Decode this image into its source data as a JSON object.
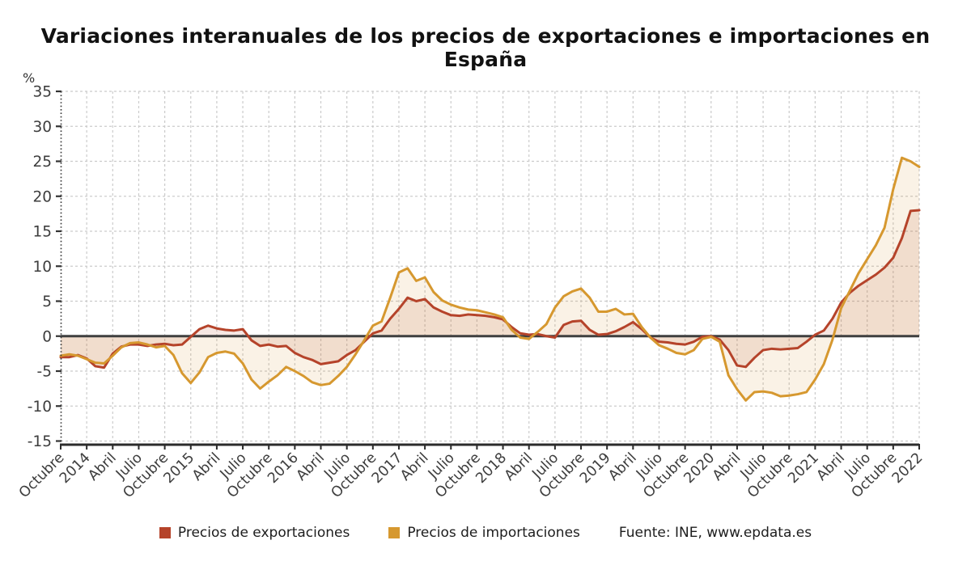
{
  "title": "Variaciones interanuales de los precios de exportaciones e importaciones en España",
  "y_axis_unit": "%",
  "legend": {
    "exportaciones": "Precios de exportaciones",
    "importaciones": "Precios de importaciones"
  },
  "source": "Fuente: INE, www.epdata.es",
  "colors": {
    "exportaciones": "#b5432a",
    "importaciones": "#d6982f",
    "grid": "#cbcbcb",
    "zero_line": "#3f3f3f",
    "axis": "#2b2b2b",
    "tick_text": "#3d3d3d"
  },
  "chart_data": {
    "type": "line",
    "title": "Variaciones interanuales de los precios de exportaciones e importaciones en España",
    "ylabel": "%",
    "x_start": "Octubre 2013",
    "x_end": "Enero 2022",
    "x_tick_every_months": 3,
    "x_tick_labels": [
      "Octubre",
      "2014",
      "Abril",
      "Julio",
      "Octubre",
      "2015",
      "Abril",
      "Julio",
      "Octubre",
      "2016",
      "Abril",
      "Julio",
      "Octubre",
      "2017",
      "Abril",
      "Julio",
      "Octubre",
      "2018",
      "Abril",
      "Julio",
      "Octubre",
      "2019",
      "Abril",
      "Julio",
      "Octubre",
      "2020",
      "Abril",
      "Julio",
      "Octubre",
      "2021",
      "Abril",
      "Julio",
      "Octubre",
      "2022"
    ],
    "y_ticks": [
      35,
      30,
      25,
      20,
      15,
      10,
      5,
      0,
      -5,
      -10,
      -15
    ],
    "ylim": [
      -15,
      35
    ],
    "grid": true,
    "legend_position": "bottom",
    "series": [
      {
        "name": "Precios de exportaciones",
        "color": "#b5432a",
        "values": [
          -3.0,
          -3.0,
          -2.7,
          -3.2,
          -4.3,
          -4.5,
          -2.5,
          -1.5,
          -1.2,
          -1.2,
          -1.4,
          -1.2,
          -1.1,
          -1.3,
          -1.2,
          -0.1,
          1.0,
          1.5,
          1.1,
          0.9,
          0.8,
          1.0,
          -0.6,
          -1.4,
          -1.2,
          -1.5,
          -1.4,
          -2.4,
          -3.0,
          -3.4,
          -4.0,
          -3.8,
          -3.6,
          -2.7,
          -2.0,
          -0.8,
          0.4,
          0.8,
          2.5,
          3.9,
          5.5,
          5.0,
          5.3,
          4.1,
          3.5,
          3.0,
          2.9,
          3.1,
          3.0,
          2.9,
          2.7,
          2.4,
          1.3,
          0.4,
          0.2,
          0.3,
          0.0,
          -0.2,
          1.6,
          2.1,
          2.2,
          0.9,
          0.2,
          0.3,
          0.7,
          1.3,
          2.0,
          1.0,
          -0.2,
          -0.8,
          -0.9,
          -1.1,
          -1.2,
          -0.8,
          -0.1,
          0.0,
          -0.5,
          -2.0,
          -4.2,
          -4.4,
          -3.1,
          -2.0,
          -1.8,
          -1.9,
          -1.8,
          -1.7,
          -0.8,
          0.2,
          0.8,
          2.5,
          4.8,
          6.2,
          7.2,
          8.0,
          8.8,
          9.8,
          11.2,
          14.0,
          17.9,
          18.0
        ]
      },
      {
        "name": "Precios de importaciones",
        "color": "#d6982f",
        "values": [
          -2.8,
          -2.6,
          -2.8,
          -3.3,
          -3.8,
          -3.9,
          -2.8,
          -1.6,
          -1.0,
          -0.9,
          -1.2,
          -1.6,
          -1.4,
          -2.7,
          -5.3,
          -6.7,
          -5.2,
          -3.0,
          -2.4,
          -2.2,
          -2.5,
          -3.9,
          -6.2,
          -7.5,
          -6.5,
          -5.6,
          -4.4,
          -5.0,
          -5.7,
          -6.6,
          -7.0,
          -6.8,
          -5.7,
          -4.4,
          -2.6,
          -0.6,
          1.5,
          2.1,
          5.5,
          9.1,
          9.7,
          7.9,
          8.4,
          6.3,
          5.1,
          4.5,
          4.1,
          3.8,
          3.7,
          3.4,
          3.1,
          2.7,
          0.9,
          -0.2,
          -0.4,
          0.6,
          1.7,
          4.1,
          5.7,
          6.4,
          6.8,
          5.5,
          3.5,
          3.5,
          3.9,
          3.1,
          3.2,
          1.3,
          -0.2,
          -1.3,
          -1.8,
          -2.4,
          -2.6,
          -2.0,
          -0.4,
          -0.1,
          -0.8,
          -5.6,
          -7.6,
          -9.2,
          -8.0,
          -7.9,
          -8.1,
          -8.6,
          -8.5,
          -8.3,
          -8.0,
          -6.2,
          -4.0,
          -0.5,
          4.0,
          6.5,
          9.0,
          11.0,
          13.0,
          15.5,
          21.0,
          25.5,
          25.0,
          24.2
        ]
      }
    ]
  }
}
